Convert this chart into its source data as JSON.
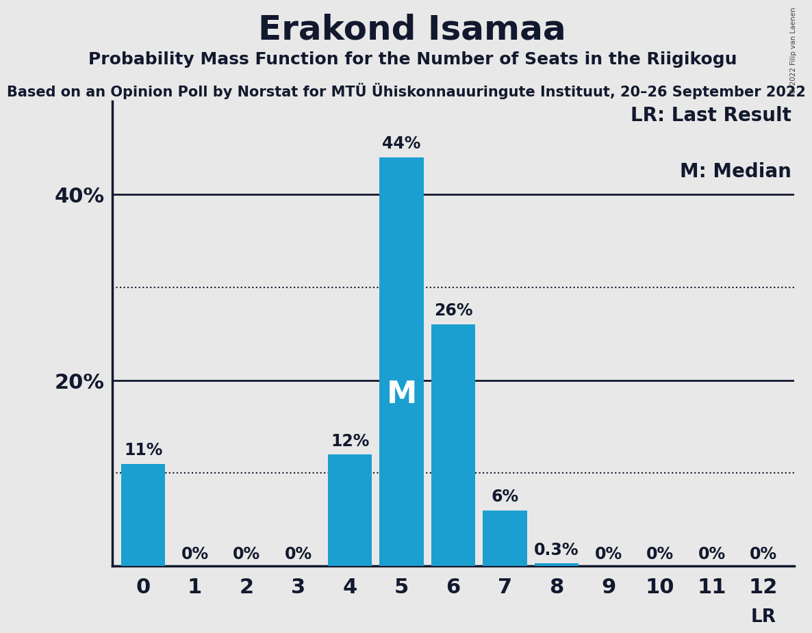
{
  "title": "Erakond Isamaa",
  "subtitle": "Probability Mass Function for the Number of Seats in the Riigikogu",
  "sub_subtitle": "Based on an Opinion Poll by Norstat for MTÜ Ühiskonnauuringute Instituut, 20–26 September 2022",
  "copyright": "© 2022 Filip van Laenen",
  "seats": [
    0,
    1,
    2,
    3,
    4,
    5,
    6,
    7,
    8,
    9,
    10,
    11,
    12
  ],
  "probabilities": [
    0.11,
    0.0,
    0.0,
    0.0,
    0.12,
    0.44,
    0.26,
    0.06,
    0.003,
    0.0,
    0.0,
    0.0,
    0.0
  ],
  "bar_color": "#1B9FD0",
  "bar_labels": [
    "11%",
    "0%",
    "0%",
    "0%",
    "12%",
    "44%",
    "26%",
    "6%",
    "0.3%",
    "0%",
    "0%",
    "0%",
    "0%"
  ],
  "median_seat": 5,
  "lr_seat": 12,
  "ylim": [
    0,
    0.5
  ],
  "yticks": [
    0.2,
    0.4
  ],
  "ytick_labels": [
    "20%",
    "40%"
  ],
  "dotted_lines": [
    0.1,
    0.3
  ],
  "background_color": "#E8E8E8",
  "plot_bg_color": "#E8E8E8",
  "title_fontsize": 36,
  "subtitle_fontsize": 18,
  "sub_subtitle_fontsize": 15,
  "ytick_fontsize": 22,
  "xtick_fontsize": 22,
  "bar_label_fontsize": 17,
  "legend_fontsize": 20,
  "median_fontsize": 32
}
